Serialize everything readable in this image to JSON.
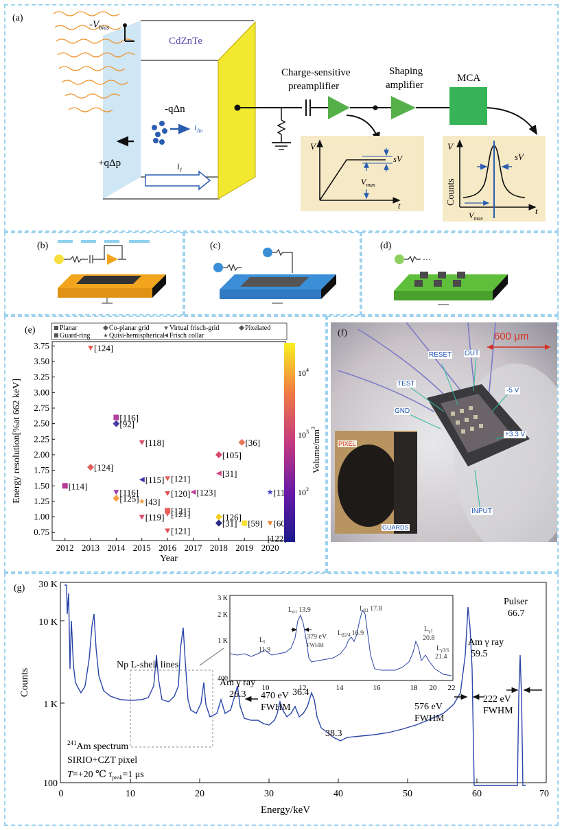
{
  "panel_a": {
    "label": "(a)",
    "bias": "-V",
    "bias_sub": "bias",
    "material": "CdZnTe",
    "neg_charge": "-qΔn",
    "pos_charge": "+qΔp",
    "i_dn": "i",
    "i_dn_sub": "Δn",
    "i1": "i",
    "i1_sub": "1",
    "csp": [
      "Charge-sensitive",
      "preamplifier"
    ],
    "shaping": [
      "Shaping",
      "amplifier"
    ],
    "mca": "MCA",
    "plot1": {
      "y": "V",
      "x": "t",
      "sv": "sV",
      "vmax": "V",
      "vmax_sub": "max"
    },
    "plot2": {
      "y": "V",
      "ylabel": "Counts",
      "x": "t",
      "sv": "sV",
      "vmax": "V",
      "vmax_sub": "max"
    },
    "colors": {
      "crystal": "#cfe6f4",
      "electrode": "#f2e830",
      "amp": "#55b04a",
      "mca": "#36b457",
      "box": "#f6e9c6",
      "wave": "#f0932b"
    }
  },
  "panel_b": {
    "label": "(b)",
    "color": "#f2a51c"
  },
  "panel_c": {
    "label": "(c)",
    "color": "#3a8fd8"
  },
  "panel_d": {
    "label": "(d)",
    "color": "#5fbf3a"
  },
  "panel_e": {
    "label": "(e)",
    "legend": [
      {
        "shape": "square",
        "text": "Planar"
      },
      {
        "shape": "diamond",
        "text": "Co-planar grid"
      },
      {
        "shape": "tri-down",
        "text": "Virtual frisch-grid"
      },
      {
        "shape": "diamond",
        "text": "Pixelated"
      },
      {
        "shape": "square-small",
        "text": "Guard-ring"
      },
      {
        "shape": "star",
        "text": "Quisi-hemispherical"
      },
      {
        "shape": "tri-left",
        "text": "Frisch collar"
      }
    ],
    "colorbar": {
      "label": "Volume/mm",
      "label_sup": "3",
      "ticks": [
        "10",
        "10",
        "10"
      ],
      "tick_sups": [
        "4",
        "3",
        "2"
      ]
    }
  },
  "chart_data": {
    "type": "scatter",
    "xlabel": "Year",
    "ylabel": "Energy resolution[%at 662 keV]",
    "xlim": [
      2011.5,
      2020.6
    ],
    "ylim": [
      0.62,
      3.82
    ],
    "xticks": [
      2012,
      2013,
      2014,
      2015,
      2016,
      2017,
      2018,
      2019,
      2020
    ],
    "yticks": [
      "0.75",
      "1.00",
      "1.25",
      "1.50",
      "1.75",
      "2.00",
      "2.25",
      "2.50",
      "2.75",
      "3.00",
      "3.25",
      "3.50",
      "3.75"
    ],
    "points": [
      {
        "x": 2013,
        "y": 3.72,
        "label": "[124]",
        "shape": "tri-down",
        "color": "#e8605a"
      },
      {
        "x": 2014,
        "y": 2.6,
        "label": "[116]",
        "shape": "square",
        "color": "#b2409a"
      },
      {
        "x": 2014,
        "y": 2.5,
        "label": "[92]",
        "shape": "diamond",
        "color": "#4a3ba0"
      },
      {
        "x": 2015,
        "y": 2.2,
        "label": "[118]",
        "shape": "tri-down",
        "color": "#d8506a"
      },
      {
        "x": 2018.9,
        "y": 2.2,
        "label": "[36]",
        "shape": "diamond",
        "color": "#e8745a"
      },
      {
        "x": 2018,
        "y": 2.0,
        "label": "[105]",
        "shape": "diamond",
        "color": "#d84a6a"
      },
      {
        "x": 2013,
        "y": 1.8,
        "label": "[124]",
        "shape": "diamond",
        "color": "#e0605a"
      },
      {
        "x": 2018,
        "y": 1.7,
        "label": "[31]",
        "shape": "tri-left",
        "color": "#d04a80"
      },
      {
        "x": 2016,
        "y": 1.62,
        "label": "[121]",
        "shape": "tri-down",
        "color": "#e0605a"
      },
      {
        "x": 2015,
        "y": 1.6,
        "label": "[115]",
        "shape": "tri-left",
        "color": "#3e3aa8"
      },
      {
        "x": 2012,
        "y": 1.5,
        "label": "[114]",
        "shape": "square",
        "color": "#b83898"
      },
      {
        "x": 2014,
        "y": 1.4,
        "label": "[116]",
        "shape": "tri-down",
        "color": "#9a3aa8"
      },
      {
        "x": 2016,
        "y": 1.38,
        "label": "[120]",
        "shape": "tri-down",
        "color": "#e0505a"
      },
      {
        "x": 2017,
        "y": 1.4,
        "label": "[123]",
        "shape": "tri-left",
        "color": "#c8409a"
      },
      {
        "x": 2020,
        "y": 1.4,
        "label": "[117]",
        "shape": "star",
        "color": "#4a44c8"
      },
      {
        "x": 2014,
        "y": 1.3,
        "label": "[125]",
        "shape": "diamond",
        "color": "#f4a244"
      },
      {
        "x": 2015,
        "y": 1.25,
        "label": "[43]",
        "shape": "star",
        "color": "#f49a3a"
      },
      {
        "x": 2016,
        "y": 1.1,
        "label": "[121]",
        "shape": "square",
        "color": "#e8605a"
      },
      {
        "x": 2016,
        "y": 1.05,
        "label": "[121]",
        "shape": "tri-down",
        "color": "#e8605a"
      },
      {
        "x": 2015,
        "y": 1.0,
        "label": "[119]",
        "shape": "tri-down",
        "color": "#e04a6a"
      },
      {
        "x": 2018,
        "y": 1.0,
        "label": "[126]",
        "shape": "diamond",
        "color": "#f6d020"
      },
      {
        "x": 2018,
        "y": 0.9,
        "label": "[31]",
        "shape": "diamond",
        "color": "#2a2a80"
      },
      {
        "x": 2019,
        "y": 0.9,
        "label": "[59]",
        "shape": "square",
        "color": "#f6e030"
      },
      {
        "x": 2020,
        "y": 0.9,
        "label": "[60]",
        "shape": "tri-down",
        "color": "#f08a3a"
      },
      {
        "x": 2016,
        "y": 0.78,
        "label": "[121]",
        "shape": "tri-down",
        "color": "#e0505a"
      }
    ],
    "extra_labels": [
      {
        "x": 2020,
        "y": 0.8,
        "label": "[122]"
      }
    ]
  },
  "panel_f": {
    "label": "(f)",
    "scale": "600 μm",
    "tags": [
      "RESET",
      "OUT",
      "TEST",
      "-5 V",
      "GND",
      "+3.3 V",
      "INPUT",
      "PIXEL",
      "GUARDS"
    ]
  },
  "panel_g": {
    "label": "(g)",
    "ylabel": "Counts",
    "xlabel": "Energy/keV",
    "yticks": [
      "30 K",
      "10 K",
      "1 K",
      "100"
    ],
    "xticks": [
      "0",
      "10",
      "20",
      "30",
      "40",
      "50",
      "60",
      "70"
    ],
    "annotations": {
      "np": "Np L-shell lines",
      "am26_1": "Am γ ray",
      "am26_2": "26.3",
      "fw470_1": "470 eV",
      "fw470_2": "FWHM",
      "p364": "36.4",
      "p383": "38.3",
      "am59_1": "Am γ ray",
      "am59_2": "59.5",
      "fw576_1": "576 eV",
      "fw576_2": "FWHM",
      "pulser_1": "Pulser",
      "pulser_2": "66.7",
      "fw222_1": "222 eV",
      "fw222_2": "FWHM",
      "spec_sup": "241",
      "spec1": "Am spectrum",
      "spec2": "SIRIO+CZT pixel",
      "cond_T": "T",
      "cond_rest": "=+20 ℃ ",
      "cond_tau": "τ",
      "cond_tau_sub": "peak",
      "cond_end": "=1 μs"
    },
    "inset": {
      "yticks": [
        "3 K",
        "2 K",
        "1 K",
        "400"
      ],
      "xticks": [
        "10",
        "12",
        "14",
        "16",
        "18",
        "20",
        "22"
      ],
      "peaks": {
        "ll": "L",
        "ll_sub": "l",
        "ll_val": "11.9",
        "la": "L",
        "la_sub": "α1",
        "la_val": "13.9",
        "fw": "379 eV",
        "fw2": "FWHM",
        "lb2": "L",
        "lb2_sub": "β2/4",
        "lb2_val": "16.9",
        "lb1": "L",
        "lb1_sub": "β1",
        "lb1_val": "17.8",
        "lg1": "L",
        "lg1_sub": "γ1",
        "lg1_val": "20.8",
        "lg3": "L",
        "lg3_sub": "γ3/6",
        "lg3_val": "21.4"
      }
    },
    "color": "#2a44a8"
  }
}
